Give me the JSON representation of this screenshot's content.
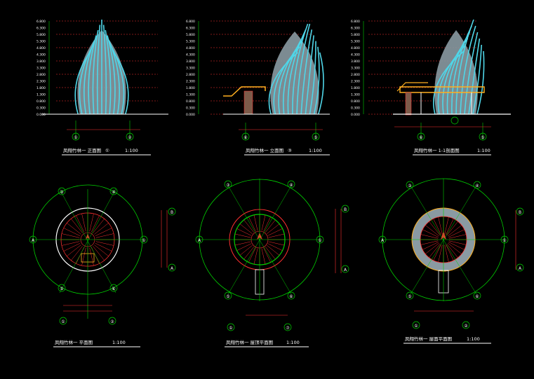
{
  "colors": {
    "background": "#000000",
    "ribs": "#4fd6e8",
    "fill": "#8a9aa2",
    "grid": "#00d000",
    "dims": "#ff3030",
    "text": "#ffffff",
    "railing": "#ffb020",
    "frame": "#ffffff"
  },
  "drawings": [
    {
      "title": "凤翔竹林一 正面图",
      "circle_label": "①",
      "scale": "1:100",
      "axes": [
        "①",
        "②"
      ],
      "levels": [
        "6.800",
        "6.300",
        "5.800",
        "5.300",
        "4.800",
        "4.300",
        "3.800",
        "3.300",
        "2.800",
        "2.300",
        "1.800",
        "1.300",
        "0.800",
        "0.300",
        "0.000"
      ]
    },
    {
      "title": "凤翔竹林一 立面图",
      "circle_label": "③",
      "scale": "1:100",
      "axes": [
        "⑥",
        "⑤"
      ],
      "levels": [
        "6.800",
        "6.300",
        "5.800",
        "5.300",
        "4.800",
        "4.300",
        "3.800",
        "3.300",
        "2.800",
        "2.300",
        "1.800",
        "1.300",
        "0.800",
        "0.300",
        "0.000"
      ]
    },
    {
      "title": "凤翔竹林一 1-1剖面图",
      "circle_label": "",
      "scale": "1:100",
      "axes": [
        "⑥",
        "⑤"
      ],
      "levels": [
        "6.800",
        "6.300",
        "5.800",
        "5.300",
        "4.800",
        "4.300",
        "3.800",
        "3.300",
        "2.800",
        "2.300",
        "1.800",
        "1.300",
        "0.800",
        "0.300",
        "0.000"
      ]
    },
    {
      "title": "凤翔竹林一 平面图",
      "scale": "1:100",
      "axes": [
        "①",
        "②",
        "③",
        "④",
        "⑤",
        "⑥",
        "A",
        "B"
      ]
    },
    {
      "title": "凤翔竹林一 屋顶平面图",
      "scale": "1:100",
      "axes": [
        "①",
        "②",
        "③",
        "④",
        "⑤",
        "⑥",
        "⑦",
        "A",
        "B"
      ]
    },
    {
      "title": "凤翔竹林一 屋面平面图",
      "scale": "1:100",
      "axes": [
        "①",
        "②",
        "③",
        "④",
        "⑤",
        "⑥",
        "A",
        "B"
      ]
    }
  ]
}
